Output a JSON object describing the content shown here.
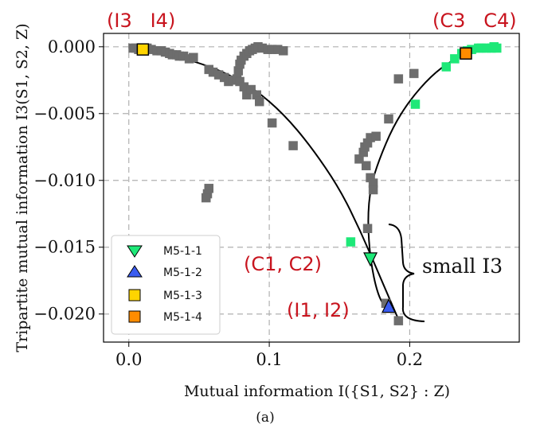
{
  "chart_data": {
    "type": "scatter",
    "xlabel": "Mutual information I({S1, S2} : Z)",
    "ylabel": "Tripartite mutual information I3(S1, S2, Z)",
    "xlim": [
      -0.018,
      0.278
    ],
    "ylim": [
      -0.0221,
      0.001
    ],
    "x_ticks": [
      0.0,
      0.1,
      0.2
    ],
    "x_tick_labels": [
      "0.0",
      "0.1",
      "0.2"
    ],
    "y_ticks": [
      0.0,
      -0.005,
      -0.01,
      -0.015,
      -0.02
    ],
    "y_tick_labels": [
      "0.000",
      "−0.005",
      "−0.010",
      "−0.015",
      "−0.020"
    ],
    "grid": true,
    "legend_position": "lower-left",
    "caption": "(a)",
    "series": [
      {
        "color": "#6d6d6d",
        "marker": "square",
        "points": [
          [
            0.003,
            -0.0001
          ],
          [
            0.005,
            -0.0001
          ],
          [
            0.007,
            -0.0002
          ],
          [
            0.01,
            -0.0002
          ],
          [
            0.013,
            -0.0001
          ],
          [
            0.016,
            -0.0002
          ],
          [
            0.02,
            -0.0003
          ],
          [
            0.023,
            -0.0003
          ],
          [
            0.026,
            -0.0004
          ],
          [
            0.029,
            -0.0005
          ],
          [
            0.031,
            -0.0006
          ],
          [
            0.034,
            -0.0006
          ],
          [
            0.036,
            -0.0007
          ],
          [
            0.039,
            -0.0007
          ],
          [
            0.043,
            -0.0009
          ],
          [
            0.046,
            -0.0008
          ],
          [
            0.057,
            -0.0017
          ],
          [
            0.06,
            -0.0019
          ],
          [
            0.064,
            -0.0021
          ],
          [
            0.068,
            -0.0023
          ],
          [
            0.071,
            -0.0026
          ],
          [
            0.074,
            -0.0025
          ],
          [
            0.077,
            -0.0024
          ],
          [
            0.079,
            -0.0026
          ],
          [
            0.082,
            -0.003
          ],
          [
            0.084,
            -0.0036
          ],
          [
            0.087,
            -0.0032
          ],
          [
            0.091,
            -0.0036
          ],
          [
            0.093,
            -0.0041
          ],
          [
            0.078,
            -0.0018
          ],
          [
            0.079,
            -0.0013
          ],
          [
            0.08,
            -0.001
          ],
          [
            0.082,
            -0.0007
          ],
          [
            0.084,
            -0.0005
          ],
          [
            0.086,
            -0.0003
          ],
          [
            0.088,
            -0.0002
          ],
          [
            0.09,
            -0.0001
          ],
          [
            0.092,
            0.0
          ],
          [
            0.095,
            -0.0001
          ],
          [
            0.099,
            -0.0002
          ],
          [
            0.102,
            -0.0002
          ],
          [
            0.106,
            -0.0002
          ],
          [
            0.11,
            -0.0003
          ],
          [
            0.102,
            -0.0057
          ],
          [
            0.117,
            -0.0074
          ],
          [
            0.057,
            -0.0106
          ],
          [
            0.056,
            -0.011
          ],
          [
            0.055,
            -0.0113
          ],
          [
            0.164,
            -0.0084
          ],
          [
            0.167,
            -0.0079
          ],
          [
            0.168,
            -0.0075
          ],
          [
            0.17,
            -0.0072
          ],
          [
            0.172,
            -0.0068
          ],
          [
            0.176,
            -0.0067
          ],
          [
            0.169,
            -0.0089
          ],
          [
            0.172,
            -0.0098
          ],
          [
            0.174,
            -0.0102
          ],
          [
            0.174,
            -0.0107
          ],
          [
            0.185,
            -0.0054
          ],
          [
            0.192,
            -0.0024
          ],
          [
            0.203,
            -0.002
          ],
          [
            0.17,
            -0.0136
          ],
          [
            0.183,
            -0.0192
          ],
          [
            0.192,
            -0.0205
          ]
        ]
      },
      {
        "color": "#1ee878",
        "marker": "square",
        "points": [
          [
            0.158,
            -0.0146
          ],
          [
            0.204,
            -0.0043
          ],
          [
            0.226,
            -0.0015
          ],
          [
            0.232,
            -0.0009
          ],
          [
            0.237,
            -0.0005
          ],
          [
            0.241,
            -0.0003
          ],
          [
            0.244,
            -0.0002
          ],
          [
            0.249,
            -0.0001
          ],
          [
            0.251,
            -0.0001
          ],
          [
            0.255,
            -0.0001
          ],
          [
            0.258,
            -0.0001
          ],
          [
            0.26,
            0.0
          ],
          [
            0.262,
            -0.0001
          ]
        ]
      },
      {
        "name": "M5-1-1",
        "color": "#1ee878",
        "marker": "triangle-down",
        "points": [
          [
            0.172,
            -0.0159
          ]
        ]
      },
      {
        "name": "M5-1-2",
        "color": "#3a5cf0",
        "marker": "triangle-up",
        "points": [
          [
            0.185,
            -0.0194
          ]
        ]
      },
      {
        "name": "M5-1-3",
        "color": "#ffd400",
        "marker": "square",
        "points": [
          [
            0.01,
            -0.0002
          ]
        ]
      },
      {
        "name": "M5-1-4",
        "color": "#ff8c00",
        "marker": "square",
        "points": [
          [
            0.24,
            -0.0005
          ]
        ]
      }
    ],
    "curves": [
      {
        "color": "#000000",
        "points": [
          [
            0.0,
            0.0
          ],
          [
            0.01,
            -0.0002
          ],
          [
            0.03,
            -0.0006
          ],
          [
            0.05,
            -0.0012
          ],
          [
            0.07,
            -0.002
          ],
          [
            0.09,
            -0.0032
          ],
          [
            0.11,
            -0.005
          ],
          [
            0.13,
            -0.0075
          ],
          [
            0.15,
            -0.0106
          ],
          [
            0.165,
            -0.0138
          ],
          [
            0.178,
            -0.017
          ],
          [
            0.187,
            -0.0192
          ],
          [
            0.192,
            -0.0204
          ]
        ]
      },
      {
        "color": "#000000",
        "points": [
          [
            0.183,
            -0.0196
          ],
          [
            0.177,
            -0.0185
          ],
          [
            0.172,
            -0.016
          ],
          [
            0.17,
            -0.013
          ],
          [
            0.172,
            -0.0105
          ],
          [
            0.178,
            -0.0085
          ],
          [
            0.188,
            -0.006
          ],
          [
            0.2,
            -0.004
          ],
          [
            0.215,
            -0.0022
          ],
          [
            0.23,
            -0.001
          ],
          [
            0.245,
            -0.0004
          ],
          [
            0.262,
            -0.0001
          ]
        ]
      }
    ],
    "annotations": [
      {
        "text": "(I3   I4)",
        "color": "#c8141e"
      },
      {
        "text": "(C3   C4)",
        "color": "#c8141e"
      },
      {
        "text": "(C1, C2)",
        "color": "#c8141e"
      },
      {
        "text": "(I1, I2)",
        "color": "#c8141e"
      },
      {
        "text": "small I3",
        "color": "#111111"
      }
    ]
  }
}
